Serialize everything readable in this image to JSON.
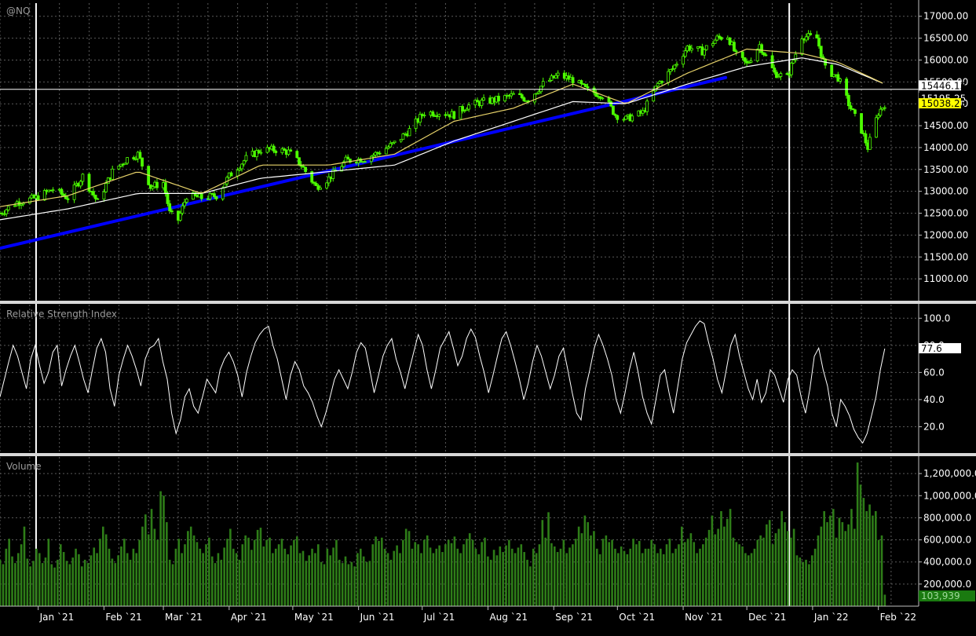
{
  "chart_data": [
    {
      "type": "candlestick",
      "title": "@NQ",
      "ylim": [
        10500,
        17300
      ],
      "yticks": [
        11000,
        11500,
        12000,
        12500,
        13000,
        13500,
        14000,
        14500,
        15000,
        15500,
        16000,
        16500,
        17000
      ],
      "ytick_labels": [
        "11000.00",
        "11500.00",
        "12000.00",
        "12500.00",
        "13000.00",
        "13500.00",
        "14000.00",
        "14500.00",
        "15000.00",
        "15500.00",
        "16000.00",
        "16500.00",
        "17000.00"
      ],
      "grid": true,
      "last_price_label": "15038.23",
      "ma_labels": [
        "15446.13",
        "15195.25"
      ],
      "close_path": [
        [
          "2020-12-14",
          12500
        ],
        [
          "2020-12-22",
          12750
        ],
        [
          "2020-12-31",
          12850
        ],
        [
          "2021-01-08",
          13050
        ],
        [
          "2021-01-15",
          12850
        ],
        [
          "2021-01-22",
          13350
        ],
        [
          "2021-01-29",
          12750
        ],
        [
          "2021-02-05",
          13450
        ],
        [
          "2021-02-12",
          13750
        ],
        [
          "2021-02-17",
          13850
        ],
        [
          "2021-02-23",
          13100
        ],
        [
          "2021-03-01",
          13200
        ],
        [
          "2021-03-04",
          12500
        ],
        [
          "2021-03-08",
          12350
        ],
        [
          "2021-03-12",
          12900
        ],
        [
          "2021-03-19",
          12850
        ],
        [
          "2021-03-26",
          12900
        ],
        [
          "2021-04-01",
          13350
        ],
        [
          "2021-04-09",
          13750
        ],
        [
          "2021-04-16",
          13950
        ],
        [
          "2021-04-23",
          13950
        ],
        [
          "2021-04-29",
          13900
        ],
        [
          "2021-05-05",
          13600
        ],
        [
          "2021-05-12",
          13100
        ],
        [
          "2021-05-18",
          13300
        ],
        [
          "2021-05-26",
          13700
        ],
        [
          "2021-06-04",
          13750
        ],
        [
          "2021-06-11",
          13900
        ],
        [
          "2021-06-18",
          14100
        ],
        [
          "2021-06-25",
          14400
        ],
        [
          "2021-07-02",
          14800
        ],
        [
          "2021-07-09",
          14800
        ],
        [
          "2021-07-16",
          14750
        ],
        [
          "2021-07-22",
          14950
        ],
        [
          "2021-07-30",
          15050
        ],
        [
          "2021-08-06",
          15100
        ],
        [
          "2021-08-13",
          15200
        ],
        [
          "2021-08-20",
          15100
        ],
        [
          "2021-08-27",
          15450
        ],
        [
          "2021-09-03",
          15650
        ],
        [
          "2021-09-10",
          15550
        ],
        [
          "2021-09-17",
          15300
        ],
        [
          "2021-09-24",
          15200
        ],
        [
          "2021-09-30",
          14750
        ],
        [
          "2021-10-05",
          14650
        ],
        [
          "2021-10-13",
          14800
        ],
        [
          "2021-10-20",
          15450
        ],
        [
          "2021-10-27",
          15800
        ],
        [
          "2021-11-03",
          16300
        ],
        [
          "2021-11-10",
          16200
        ],
        [
          "2021-11-17",
          16500
        ],
        [
          "2021-11-22",
          16550
        ],
        [
          "2021-11-26",
          16100
        ],
        [
          "2021-12-01",
          15900
        ],
        [
          "2021-12-07",
          16350
        ],
        [
          "2021-12-14",
          15700
        ],
        [
          "2021-12-20",
          15600
        ],
        [
          "2021-12-27",
          16550
        ],
        [
          "2022-01-03",
          16500
        ],
        [
          "2022-01-07",
          15800
        ],
        [
          "2022-01-13",
          15600
        ],
        [
          "2022-01-18",
          15000
        ],
        [
          "2022-01-24",
          14400
        ],
        [
          "2022-01-27",
          14000
        ],
        [
          "2022-02-01",
          14800
        ],
        [
          "2022-02-04",
          15000
        ]
      ],
      "ma_fast_path": [
        [
          "2020-12-14",
          12650
        ],
        [
          "2021-01-15",
          12900
        ],
        [
          "2021-02-17",
          13450
        ],
        [
          "2021-03-19",
          12950
        ],
        [
          "2021-04-16",
          13600
        ],
        [
          "2021-05-18",
          13600
        ],
        [
          "2021-06-18",
          13850
        ],
        [
          "2021-07-16",
          14600
        ],
        [
          "2021-08-13",
          14900
        ],
        [
          "2021-09-10",
          15450
        ],
        [
          "2021-10-05",
          15000
        ],
        [
          "2021-11-03",
          15700
        ],
        [
          "2021-12-01",
          16250
        ],
        [
          "2021-12-27",
          16150
        ],
        [
          "2022-01-13",
          15950
        ],
        [
          "2022-02-04",
          15450
        ]
      ],
      "ma_slow_path": [
        [
          "2020-12-14",
          12350
        ],
        [
          "2021-01-15",
          12600
        ],
        [
          "2021-02-17",
          12950
        ],
        [
          "2021-03-19",
          12950
        ],
        [
          "2021-04-16",
          13300
        ],
        [
          "2021-05-18",
          13450
        ],
        [
          "2021-06-18",
          13600
        ],
        [
          "2021-07-16",
          14150
        ],
        [
          "2021-08-13",
          14600
        ],
        [
          "2021-09-10",
          15050
        ],
        [
          "2021-10-05",
          15000
        ],
        [
          "2021-11-03",
          15450
        ],
        [
          "2021-12-01",
          15850
        ],
        [
          "2021-12-27",
          16050
        ],
        [
          "2022-01-13",
          15900
        ],
        [
          "2022-02-04",
          15450
        ]
      ],
      "trendline": [
        [
          "2020-12-14",
          11700
        ],
        [
          "2021-11-21",
          15600
        ]
      ],
      "colors": {
        "candles": "#4dff00",
        "ma_fast": "#e8d36a",
        "ma_slow": "#ffffff",
        "trendline": "#0000ff",
        "last_price_bg": "#ffff00"
      }
    },
    {
      "type": "line",
      "title": "Relative Strength Index",
      "ylim": [
        0,
        110
      ],
      "yticks": [
        20,
        40,
        60,
        80,
        100
      ],
      "ytick_labels": [
        "20.0",
        "40.0",
        "60.0",
        "80.0",
        "100.0"
      ],
      "last_value_label": "77.6",
      "grid": true,
      "series": [
        {
          "values": [
            42,
            55,
            68,
            80,
            72,
            60,
            48,
            70,
            80,
            65,
            52,
            60,
            75,
            80,
            50,
            62,
            72,
            80,
            68,
            55,
            45,
            62,
            78,
            85,
            75,
            48,
            35,
            58,
            70,
            80,
            72,
            62,
            50,
            70,
            78,
            80,
            85,
            68,
            55,
            30,
            15,
            25,
            42,
            48,
            35,
            30,
            42,
            55,
            50,
            45,
            62,
            70,
            75,
            68,
            58,
            42,
            60,
            72,
            82,
            88,
            92,
            94,
            80,
            70,
            55,
            40,
            58,
            68,
            62,
            50,
            45,
            38,
            28,
            20,
            30,
            42,
            55,
            62,
            55,
            48,
            60,
            75,
            82,
            78,
            62,
            45,
            58,
            72,
            80,
            85,
            70,
            60,
            48,
            62,
            75,
            88,
            80,
            62,
            48,
            62,
            78,
            84,
            90,
            78,
            65,
            72,
            85,
            92,
            86,
            72,
            60,
            45,
            58,
            72,
            85,
            90,
            80,
            68,
            55,
            40,
            52,
            68,
            80,
            72,
            60,
            48,
            58,
            72,
            78,
            62,
            45,
            30,
            25,
            48,
            62,
            78,
            88,
            80,
            70,
            58,
            40,
            30,
            45,
            62,
            75,
            60,
            42,
            30,
            22,
            40,
            58,
            62,
            45,
            30,
            50,
            70,
            82,
            88,
            94,
            98,
            96,
            82,
            70,
            55,
            45,
            62,
            80,
            88,
            72,
            60,
            48,
            40,
            55,
            38,
            45,
            62,
            58,
            48,
            38,
            55,
            62,
            58,
            42,
            30,
            48,
            72,
            78,
            62,
            50,
            30,
            20,
            40,
            35,
            28,
            18,
            12,
            8,
            15,
            28,
            42,
            62,
            77.6
          ]
        }
      ],
      "colors": {
        "line": "#ffffff"
      }
    },
    {
      "type": "bar",
      "title": "Volume",
      "ylim": [
        0,
        1350000
      ],
      "yticks": [
        200000,
        400000,
        600000,
        800000,
        1000000,
        1200000
      ],
      "ytick_labels": [
        "200,000.0",
        "400,000.0",
        "600,000.0",
        "800,000.0",
        "1,000,000.0",
        "1,200,000.0"
      ],
      "last_value_label": "103,939",
      "grid": true,
      "series": [
        {
          "values": [
            420000,
            380000,
            520000,
            610000,
            450000,
            390000,
            480000,
            560000,
            720000,
            430000,
            360000,
            410000,
            520000,
            480000,
            390000,
            440000,
            610000,
            380000,
            350000,
            420000,
            560000,
            490000,
            410000,
            380000,
            440000,
            520000,
            470000,
            360000,
            420000,
            390000,
            460000,
            530000,
            480000,
            610000,
            720000,
            650000,
            520000,
            430000,
            390000,
            460000,
            540000,
            610000,
            480000,
            420000,
            520000,
            480000,
            600000,
            720000,
            830000,
            650000,
            880000,
            700000,
            600000,
            1040000,
            1000000,
            760000,
            420000,
            380000,
            520000,
            610000,
            480000,
            560000,
            680000,
            720000,
            640000,
            580000,
            520000,
            480000,
            560000,
            620000,
            450000,
            390000,
            480000,
            420000,
            530000,
            610000,
            700000,
            520000,
            480000,
            420000,
            560000,
            640000,
            620000,
            510000,
            600000,
            690000,
            710000,
            540000,
            600000,
            620000,
            480000,
            520000,
            560000,
            610000,
            520000,
            470000,
            550000,
            600000,
            630000,
            480000,
            500000,
            410000,
            460000,
            520000,
            480000,
            560000,
            400000,
            380000,
            520000,
            460000,
            530000,
            600000,
            420000,
            390000,
            450000,
            380000,
            400000,
            360000,
            480000,
            520000,
            450000,
            400000,
            410000,
            560000,
            630000,
            590000,
            620000,
            520000,
            480000,
            420000,
            500000,
            550000,
            480000,
            600000,
            700000,
            680000,
            520000,
            580000,
            560000,
            480000,
            600000,
            640000,
            530000,
            480000,
            520000,
            550000,
            490000,
            560000,
            600000,
            570000,
            630000,
            520000,
            480000,
            560000,
            610000,
            660000,
            600000,
            520000,
            470000,
            580000,
            620000,
            450000,
            420000,
            510000,
            460000,
            540000,
            490000,
            550000,
            600000,
            520000,
            480000,
            530000,
            560000,
            490000,
            420000,
            360000,
            520000,
            480000,
            560000,
            780000,
            620000,
            850000,
            570000,
            540000,
            490000,
            520000,
            600000,
            480000,
            530000,
            560000,
            610000,
            720000,
            660000,
            820000,
            760000,
            640000,
            680000,
            520000,
            470000,
            610000,
            640000,
            580000,
            600000,
            520000,
            480000,
            540000,
            500000,
            470000,
            520000,
            610000,
            560000,
            590000,
            480000,
            520000,
            520000,
            600000,
            560000,
            480000,
            520000,
            470000,
            560000,
            610000,
            480000,
            520000,
            560000,
            720000,
            580000,
            610000,
            660000,
            580000,
            480000,
            520000,
            560000,
            620000,
            690000,
            820000,
            650000,
            700000,
            860000,
            720000,
            790000,
            880000,
            620000,
            580000,
            560000,
            540000,
            480000,
            460000,
            480000,
            520000,
            600000,
            640000,
            620000,
            740000,
            780000,
            560000,
            660000,
            700000,
            860000,
            760000,
            680000,
            620000,
            700000,
            460000,
            440000,
            400000,
            420000,
            380000,
            460000,
            520000,
            640000,
            720000,
            860000,
            760000,
            820000,
            880000,
            620000,
            800000,
            760000,
            680000,
            740000,
            880000,
            700000,
            1300000,
            1100000,
            980000,
            860000,
            920000,
            820000,
            860000,
            600000,
            640000,
            103939
          ]
        }
      ],
      "colors": {
        "bars": "#2e7d18",
        "last_value_bg": "#1a7a10"
      }
    }
  ],
  "x_axis": {
    "labels": [
      "Jan `21",
      "Feb `21",
      "Mar `21",
      "Apr `21",
      "May `21",
      "Jun `21",
      "Jul `21",
      "Aug `21",
      "Sep `21",
      "Oct `21",
      "Nov `21",
      "Dec `21",
      "Jan `22",
      "Feb `22"
    ],
    "dates": [
      "2021-01-01",
      "2021-02-01",
      "2021-03-01",
      "2021-04-01",
      "2021-05-01",
      "2021-06-01",
      "2021-07-01",
      "2021-08-01",
      "2021-09-01",
      "2021-10-01",
      "2021-11-01",
      "2021-12-01",
      "2022-01-01",
      "2022-02-01"
    ],
    "range": [
      "2020-12-14",
      "2022-02-20"
    ],
    "marker_dates": [
      "2020-12-31",
      "2021-12-21"
    ]
  }
}
